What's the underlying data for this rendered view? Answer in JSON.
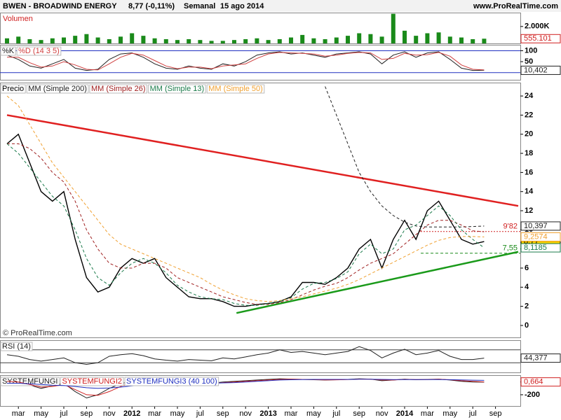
{
  "header": {
    "symbol": "BWEN - BROADWIND ENERGY",
    "quote": "8,77 (-0,11%)",
    "period": "Semanal",
    "date": "15 ago 2014",
    "site": "www.ProRealTime.com"
  },
  "chart_data": [
    {
      "type": "bar",
      "title": "Volumen",
      "color": "#1a8a1a",
      "label_color": "#d02020",
      "last_label": "555.101",
      "ylim": [
        0,
        3640
      ],
      "yticks": [
        {
          "value": 2000,
          "label": "2.000K"
        }
      ],
      "values": [
        600,
        800,
        500,
        400,
        600,
        700,
        900,
        1100,
        700,
        500,
        800,
        1200,
        900,
        600,
        500,
        400,
        500,
        400,
        300,
        300,
        400,
        500,
        600,
        400,
        500,
        700,
        1000,
        600,
        500,
        700,
        900,
        1200,
        1100,
        800,
        3500,
        1500,
        900,
        1200,
        1300,
        800,
        700,
        500,
        555.101,
        null
      ]
    },
    {
      "type": "line",
      "ylim": [
        -33,
        127
      ],
      "yticks": [
        100,
        50
      ],
      "hlines": [
        100,
        0
      ],
      "hline_color": "#2030c0",
      "series": [
        {
          "name": "%K",
          "color": "#202020",
          "last_label": "10,402",
          "values": [
            80,
            60,
            30,
            20,
            40,
            60,
            20,
            10,
            15,
            60,
            85,
            90,
            70,
            40,
            20,
            15,
            30,
            20,
            15,
            40,
            30,
            50,
            80,
            90,
            95,
            85,
            90,
            80,
            70,
            85,
            90,
            95,
            85,
            40,
            80,
            95,
            70,
            90,
            95,
            60,
            20,
            10,
            10.402,
            null
          ]
        },
        {
          "name": "%D (14 3 5)",
          "color": "#d04040",
          "values": [
            70,
            70,
            45,
            25,
            30,
            50,
            35,
            15,
            12,
            40,
            70,
            88,
            80,
            55,
            30,
            18,
            25,
            25,
            18,
            30,
            35,
            40,
            65,
            85,
            92,
            90,
            88,
            85,
            75,
            80,
            88,
            92,
            90,
            60,
            65,
            88,
            80,
            82,
            92,
            75,
            35,
            15,
            12,
            null
          ]
        }
      ]
    },
    {
      "type": "line",
      "credit": "© ProRealTime.com",
      "ylim": [
        -1.25,
        25.4
      ],
      "yticks": [
        0,
        2,
        4,
        6,
        8,
        10,
        12,
        14,
        16,
        18,
        20,
        22,
        24
      ],
      "categories": [
        null,
        "mar",
        null,
        "may",
        null,
        "jul",
        null,
        "sep",
        null,
        "nov",
        null,
        "2012",
        null,
        "mar",
        null,
        "may",
        null,
        "jul",
        null,
        "sep",
        null,
        "nov",
        null,
        "2013",
        null,
        "mar",
        null,
        "may",
        null,
        "jul",
        null,
        "sep",
        null,
        "nov",
        null,
        "2014",
        null,
        "mar",
        null,
        "may",
        null,
        "jul",
        null,
        "sep"
      ],
      "series": [
        {
          "name": "Precio",
          "color": "#000000",
          "style": "solid",
          "last_label": "8,77",
          "label_fill": "#f5d000",
          "values": [
            19,
            20,
            17,
            14,
            13,
            14,
            9,
            5,
            3.5,
            4,
            6,
            7,
            6.5,
            7,
            5,
            4,
            3,
            2.8,
            2.8,
            2.5,
            2,
            2,
            2.2,
            2.3,
            2.5,
            3,
            4.5,
            4.5,
            4.3,
            5,
            6,
            8,
            9,
            6,
            9,
            11,
            9,
            12,
            13,
            11,
            9,
            8.5,
            8.77,
            null
          ]
        },
        {
          "name": "MM (Simple 200)",
          "color": "#202020",
          "style": "dashed",
          "last_label": "10,397",
          "values": [
            null,
            null,
            null,
            null,
            null,
            null,
            null,
            null,
            null,
            null,
            null,
            null,
            null,
            null,
            null,
            null,
            null,
            null,
            null,
            null,
            null,
            null,
            null,
            null,
            null,
            null,
            null,
            null,
            25,
            22,
            19,
            16,
            14,
            12.5,
            11.5,
            10.8,
            10.4,
            10.3,
            10.3,
            10.3,
            10.3,
            10.35,
            10.397,
            null
          ]
        },
        {
          "name": "MM (Simple 26)",
          "color": "#a02020",
          "style": "dashed",
          "values": [
            19,
            19,
            18.5,
            17.5,
            16,
            15,
            13,
            10,
            8,
            6.5,
            6,
            6,
            6.5,
            6.5,
            6,
            5,
            4.5,
            4,
            3.5,
            3,
            2.7,
            2.4,
            2.2,
            2.2,
            2.4,
            2.7,
            3.2,
            3.7,
            4.1,
            4.4,
            5,
            5.8,
            6.5,
            7,
            7.5,
            8.5,
            9.5,
            10.5,
            11,
            11,
            10.5,
            9.9,
            9.8,
            null
          ]
        },
        {
          "name": "MM (Simple 13)",
          "color": "#1a7a4a",
          "style": "dashed",
          "last_label": "8,1185",
          "values": [
            19,
            18,
            16.5,
            15,
            13.5,
            12.5,
            10,
            7,
            5,
            4.2,
            5.5,
            6.5,
            7,
            6.5,
            5.5,
            4.2,
            3.5,
            3,
            2.8,
            2.7,
            2.3,
            2.1,
            2.1,
            2.3,
            2.5,
            2.9,
            3.8,
            4.4,
            4.5,
            4.9,
            5.6,
            7.5,
            8.5,
            7.5,
            8,
            10,
            10.5,
            11.5,
            12.5,
            11.5,
            10,
            9,
            8.1185,
            null
          ]
        },
        {
          "name": "MM (Simple 50)",
          "color": "#f0a030",
          "style": "dashed",
          "last_label": "9,2574",
          "values": [
            24,
            23,
            21,
            19,
            17,
            15.5,
            14,
            12.5,
            11,
            9.5,
            8.5,
            8,
            7.5,
            7,
            6.5,
            6,
            5.5,
            5,
            4.3,
            3.7,
            3.2,
            2.8,
            2.6,
            2.5,
            2.6,
            2.8,
            3,
            3.3,
            3.6,
            3.9,
            4.3,
            4.8,
            5.4,
            6,
            6.6,
            7.2,
            7.8,
            8.4,
            8.9,
            9.2,
            9.3,
            9.3,
            9.2574,
            null
          ]
        }
      ],
      "levels": [
        {
          "value": 9.82,
          "label": "9'82",
          "color": "#d02020",
          "style": "dotted"
        },
        {
          "value": 7.55,
          "label": "7,55",
          "color": "#1a8a1a",
          "style": "dashed"
        }
      ],
      "trendlines": [
        {
          "color": "#e02020",
          "x": [
            0,
            45
          ],
          "y": [
            22,
            12.5
          ]
        },
        {
          "color": "#1a9a1a",
          "x": [
            20.2,
            45
          ],
          "y": [
            1.3,
            7.7
          ]
        }
      ]
    },
    {
      "type": "line",
      "ylim": [
        0,
        100
      ],
      "hlines": [
        70,
        30
      ],
      "hline_color": "#404040",
      "series": [
        {
          "name": "RSI (14)",
          "color": "#202020",
          "last_label": "44,377",
          "values": [
            55,
            50,
            40,
            35,
            40,
            45,
            30,
            25,
            30,
            50,
            55,
            58,
            52,
            42,
            38,
            35,
            40,
            38,
            36,
            45,
            42,
            48,
            55,
            60,
            70,
            62,
            65,
            60,
            55,
            60,
            65,
            80,
            68,
            45,
            60,
            72,
            55,
            60,
            68,
            50,
            40,
            40,
            44.377,
            null
          ]
        }
      ]
    },
    {
      "type": "line",
      "ylim": [
        -376,
        106
      ],
      "yticks": [
        0,
        -200
      ],
      "series": [
        {
          "name": "SYSTEMFUNGI",
          "color": "#202020",
          "values": [
            20,
            10,
            -50,
            -100,
            -60,
            -20,
            -150,
            -250,
            -200,
            -100,
            -30,
            20,
            10,
            -20,
            -40,
            -60,
            -40,
            -30,
            -20,
            0,
            10,
            20,
            30,
            40,
            50,
            45,
            40,
            35,
            30,
            35,
            40,
            50,
            45,
            20,
            30,
            45,
            35,
            40,
            45,
            30,
            10,
            0,
            -2,
            null
          ]
        },
        {
          "name": "SYSTEMFUNGI2",
          "color": "#d02020",
          "last_label": "0,664",
          "values": [
            10,
            0,
            -40,
            -80,
            -70,
            -40,
            -120,
            -200,
            -210,
            -150,
            -70,
            -10,
            0,
            -10,
            -30,
            -50,
            -45,
            -35,
            -25,
            -10,
            0,
            10,
            20,
            30,
            40,
            42,
            40,
            37,
            33,
            34,
            38,
            45,
            45,
            30,
            30,
            40,
            37,
            38,
            42,
            35,
            20,
            10,
            0.664,
            null
          ]
        },
        {
          "name": "SYSTEMFUNGI3 (40 100)",
          "color": "#2030c0",
          "values": [
            -20,
            -20,
            -30,
            -40,
            -50,
            -55,
            -70,
            -90,
            -100,
            -95,
            -80,
            -60,
            -45,
            -35,
            -35,
            -35,
            -30,
            -25,
            -20,
            -15,
            -10,
            0,
            10,
            20,
            30,
            35,
            38,
            40,
            40,
            40,
            40,
            42,
            42,
            40,
            38,
            38,
            37,
            37,
            38,
            36,
            32,
            28,
            25,
            null
          ]
        }
      ]
    }
  ]
}
